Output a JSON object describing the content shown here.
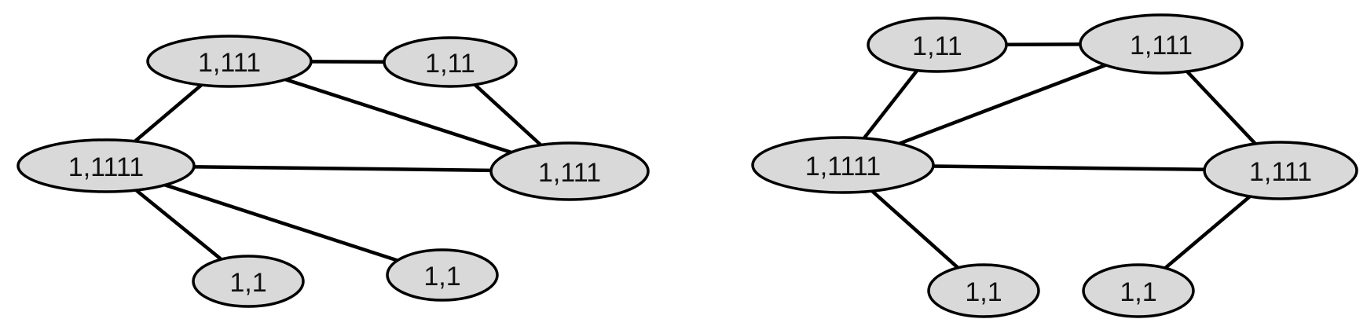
{
  "colors": {
    "node_fill": "#d9d9d9",
    "stroke": "#000000",
    "label": "#111111",
    "background": "#ffffff"
  },
  "graphs": [
    {
      "name": "left-graph",
      "nodes": [
        {
          "id": "a",
          "label": "1,111"
        },
        {
          "id": "b",
          "label": "1,11"
        },
        {
          "id": "c",
          "label": "1,1111"
        },
        {
          "id": "d",
          "label": "1,111"
        },
        {
          "id": "e",
          "label": "1,1"
        },
        {
          "id": "f",
          "label": "1,1"
        }
      ],
      "edges": [
        [
          "a",
          "b"
        ],
        [
          "a",
          "c"
        ],
        [
          "a",
          "d"
        ],
        [
          "b",
          "d"
        ],
        [
          "c",
          "d"
        ],
        [
          "c",
          "e"
        ],
        [
          "c",
          "f"
        ]
      ]
    },
    {
      "name": "right-graph",
      "nodes": [
        {
          "id": "a",
          "label": "1,11"
        },
        {
          "id": "b",
          "label": "1,111"
        },
        {
          "id": "c",
          "label": "1,1111"
        },
        {
          "id": "d",
          "label": "1,111"
        },
        {
          "id": "e",
          "label": "1,1"
        },
        {
          "id": "f",
          "label": "1,1"
        }
      ],
      "edges": [
        [
          "a",
          "b"
        ],
        [
          "a",
          "c"
        ],
        [
          "b",
          "c"
        ],
        [
          "b",
          "d"
        ],
        [
          "c",
          "d"
        ],
        [
          "c",
          "e"
        ],
        [
          "d",
          "f"
        ]
      ]
    }
  ]
}
